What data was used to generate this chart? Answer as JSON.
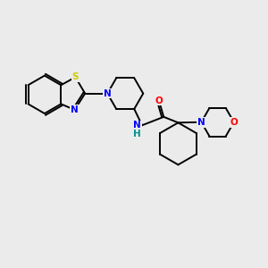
{
  "background_color": "#ebebeb",
  "bond_color": "#000000",
  "atom_colors": {
    "S": "#cccc00",
    "N": "#0000ff",
    "O": "#ff0000",
    "H": "#009090",
    "C": "#000000"
  },
  "figsize": [
    3.0,
    3.0
  ],
  "dpi": 100
}
